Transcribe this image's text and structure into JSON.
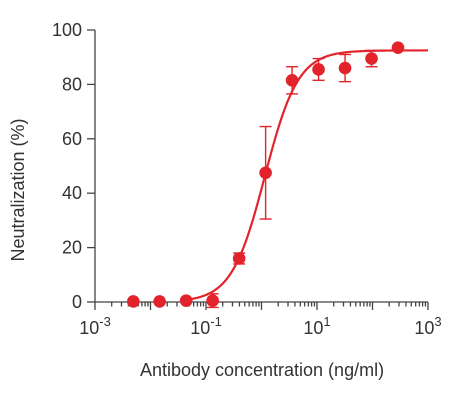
{
  "chart_data": {
    "type": "scatter",
    "xscale": "log10",
    "xlabel": "Antibody concentration (ng/ml)",
    "ylabel": "Neutralization (%)",
    "xlim": [
      0.001,
      1000
    ],
    "ylim": [
      0,
      100
    ],
    "xticks": [
      {
        "value": 0.001,
        "base": "10",
        "exp": "-3"
      },
      {
        "value": 0.1,
        "base": "10",
        "exp": "-1"
      },
      {
        "value": 10,
        "base": "10",
        "exp": "1"
      },
      {
        "value": 1000,
        "base": "10",
        "exp": "3"
      }
    ],
    "yticks": [
      0,
      20,
      40,
      60,
      80,
      100
    ],
    "grid": false,
    "color": "#e3232b",
    "points": [
      {
        "x": 0.0049,
        "y": 0.2,
        "err": 0
      },
      {
        "x": 0.0146,
        "y": 0.2,
        "err": 0
      },
      {
        "x": 0.0439,
        "y": 0.5,
        "err": 0
      },
      {
        "x": 0.1318,
        "y": 0.5,
        "err": 2.5
      },
      {
        "x": 0.3954,
        "y": 16.0,
        "err": 2.0
      },
      {
        "x": 1.186,
        "y": 47.5,
        "err": 17.0
      },
      {
        "x": 3.558,
        "y": 81.5,
        "err": 5.0
      },
      {
        "x": 10.67,
        "y": 85.5,
        "err": 4.0
      },
      {
        "x": 32.02,
        "y": 86.0,
        "err": 5.0
      },
      {
        "x": 96.06,
        "y": 89.5,
        "err": 3.0
      },
      {
        "x": 288.2,
        "y": 93.5,
        "err": 0
      }
    ],
    "fit": {
      "model": "four-parameter logistic",
      "bottom": 0,
      "top": 92.5,
      "ec50": 1.15,
      "hill": 1.45,
      "x_start": 0.0439,
      "x_end": 1000
    }
  }
}
